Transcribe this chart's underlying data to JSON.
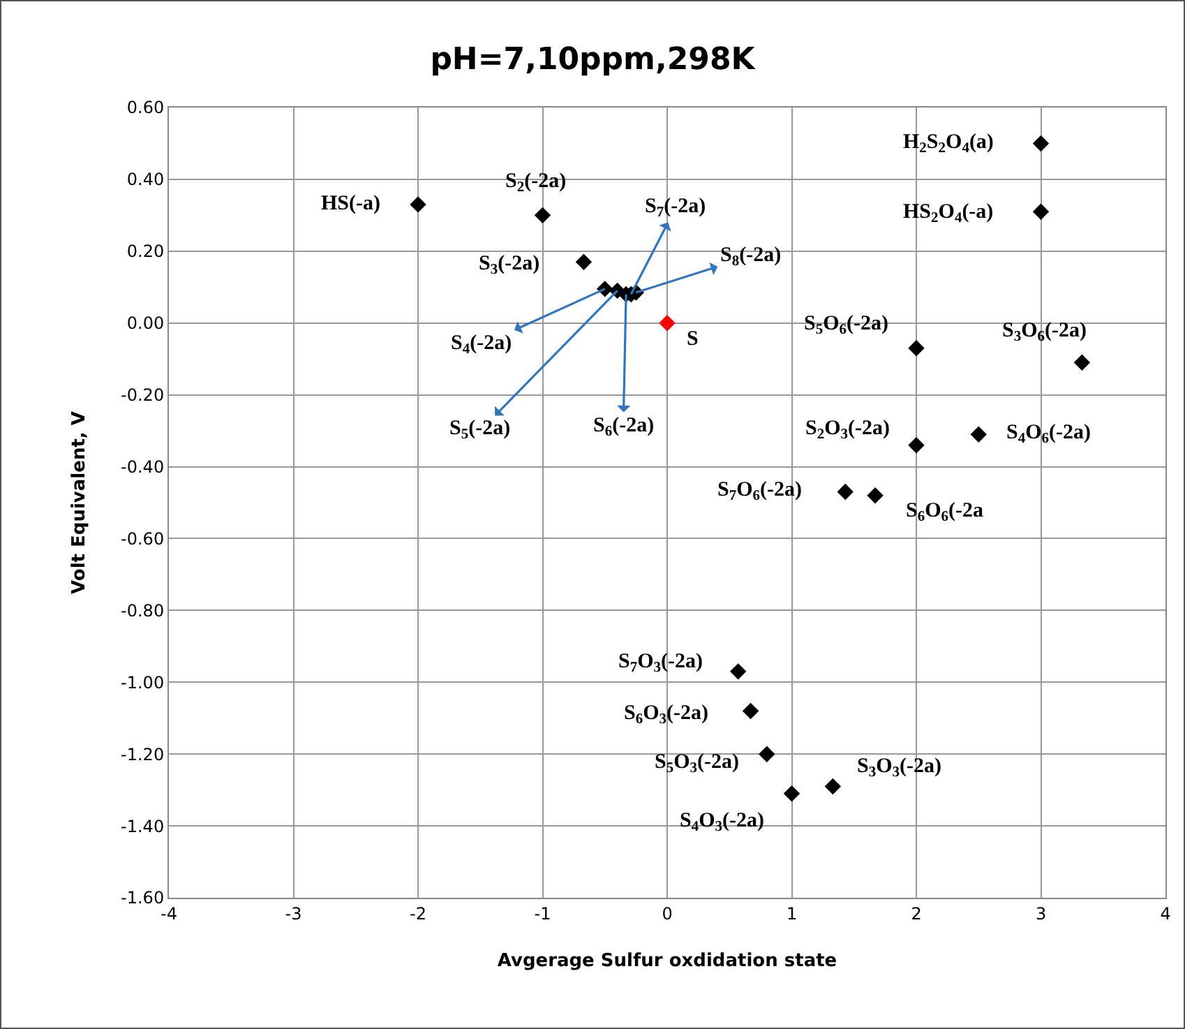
{
  "chart_data": {
    "type": "scatter",
    "title": "pH=7,10ppm,298K",
    "xlabel": "Avgerage Sulfur oxdidation state",
    "ylabel": "Volt Equivalent, V",
    "x": [
      -2,
      -1,
      -0.67,
      -0.5,
      -0.4,
      -0.33,
      -0.29,
      -0.25,
      0,
      3,
      3,
      2,
      3.33,
      2,
      2.5,
      1.43,
      1.67,
      0.57,
      0.67,
      0.8,
      1,
      1.33
    ],
    "values": [
      0.33,
      0.3,
      0.17,
      0.095,
      0.09,
      0.08,
      0.08,
      0.085,
      0,
      0.5,
      0.31,
      -0.07,
      -0.11,
      -0.34,
      -0.31,
      -0.47,
      -0.48,
      -0.97,
      -1.08,
      -1.2,
      -1.31,
      -1.29
    ],
    "colors": [
      "#000000",
      "#000000",
      "#000000",
      "#000000",
      "#000000",
      "#000000",
      "#000000",
      "#000000",
      "#ff0000",
      "#000000",
      "#000000",
      "#000000",
      "#000000",
      "#000000",
      "#000000",
      "#000000",
      "#000000",
      "#000000",
      "#000000",
      "#000000",
      "#000000",
      "#000000"
    ],
    "marker": "diamond",
    "grid": true,
    "xlim": [
      -4,
      4
    ],
    "xticks": [
      -4,
      -3,
      -2,
      -1,
      0,
      1,
      2,
      3,
      4
    ],
    "ylim": [
      -1.6,
      0.6
    ],
    "yticks": [
      {
        "value": -1.6,
        "label": "-1.60"
      },
      {
        "value": -1.4,
        "label": "-1.40"
      },
      {
        "value": -1.2,
        "label": "-1.20"
      },
      {
        "value": -1,
        "label": "-1.00"
      },
      {
        "value": -0.8,
        "label": "-0.80"
      },
      {
        "value": -0.6,
        "label": "-0.60"
      },
      {
        "value": -0.4,
        "label": "-0.40"
      },
      {
        "value": -0.2,
        "label": "-0.20"
      },
      {
        "value": 0,
        "label": "0.00"
      },
      {
        "value": 0.2,
        "label": "0.20"
      },
      {
        "value": 0.4,
        "label": "0.40"
      },
      {
        "value": 0.6,
        "label": "0.60"
      }
    ],
    "annotations": [
      {
        "text": "HS(-a)",
        "x": -2,
        "y": 0.33
      },
      {
        "text": "S$_{2}$(-2a)",
        "x": -1,
        "y": 0.3
      },
      {
        "text": "S$_{3}$(-2a)",
        "x": -0.67,
        "y": 0.17
      },
      {
        "text": "S$_{4}$(-2a)",
        "x": -0.5,
        "y": 0.095
      },
      {
        "text": "S$_{5}$(-2a)",
        "x": -0.4,
        "y": 0.09
      },
      {
        "text": "S$_{6}$(-2a)",
        "x": -0.33,
        "y": 0.08
      },
      {
        "text": "S$_{7}$(-2a)",
        "x": -0.29,
        "y": 0.08
      },
      {
        "text": "S$_{8}$(-2a)",
        "x": -0.25,
        "y": 0.085
      },
      {
        "text": "S",
        "x": 0,
        "y": 0
      },
      {
        "text": "H$_{2}$S$_{2}$O$_{4}$(a)",
        "x": 3,
        "y": 0.5
      },
      {
        "text": "HS$_{2}$O$_{4}$(-a)",
        "x": 3,
        "y": 0.31
      },
      {
        "text": "S$_{5}$O$_{6}$(-2a)",
        "x": 2,
        "y": -0.07
      },
      {
        "text": "S$_{3}$O$_{6}$(-2a)",
        "x": 3.33,
        "y": -0.11
      },
      {
        "text": "S$_{2}$O$_{3}$(-2a)",
        "x": 2,
        "y": -0.34
      },
      {
        "text": "S$_{4}$O$_{6}$(-2a)",
        "x": 2.5,
        "y": -0.31
      },
      {
        "text": "S$_{7}$O$_{6}$(-2a)",
        "x": 1.43,
        "y": -0.47
      },
      {
        "text": "S$_{6}$O$_{6}$(-2a",
        "x": 1.67,
        "y": -0.48
      },
      {
        "text": "S$_{7}$O$_{3}$(-2a)",
        "x": 0.57,
        "y": -0.97
      },
      {
        "text": "S$_{6}$O$_{3}$(-2a)",
        "x": 0.67,
        "y": -1.08
      },
      {
        "text": "S$_{5}$O$_{3}$(-2a)",
        "x": 0.8,
        "y": -1.2
      },
      {
        "text": "S$_{4}$O$_{3}$(-2a)",
        "x": 1,
        "y": -1.31
      },
      {
        "text": "S$_{3}$O$_{3}$(-2a)",
        "x": 1.33,
        "y": -1.29
      }
    ]
  }
}
